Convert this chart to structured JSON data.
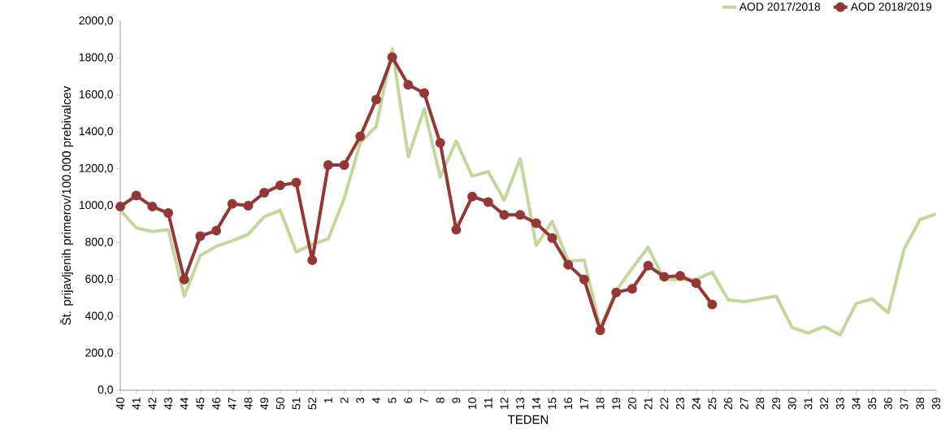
{
  "chart_data": {
    "type": "line",
    "xlabel": "TEDEN",
    "ylabel": "Št. prijavljenih primerov/100.000 prebivalcev",
    "categories": [
      "40",
      "41",
      "42",
      "43",
      "44",
      "45",
      "46",
      "47",
      "48",
      "49",
      "50",
      "51",
      "52",
      "1",
      "2",
      "3",
      "4",
      "5",
      "6",
      "7",
      "8",
      "9",
      "10",
      "11",
      "12",
      "13",
      "14",
      "15",
      "16",
      "17",
      "18",
      "19",
      "20",
      "21",
      "22",
      "23",
      "24",
      "25",
      "26",
      "27",
      "28",
      "29",
      "30",
      "31",
      "32",
      "33",
      "34",
      "35",
      "36",
      "37",
      "38",
      "39"
    ],
    "series": [
      {
        "name": "AOD 2017/2018",
        "color": "#c3d69b",
        "marker": "none",
        "values": [
          975,
          880,
          860,
          870,
          510,
          730,
          780,
          810,
          845,
          940,
          975,
          750,
          790,
          820,
          1040,
          1340,
          1430,
          1850,
          1265,
          1525,
          1155,
          1350,
          1160,
          1185,
          1030,
          1255,
          785,
          915,
          700,
          705,
          340,
          540,
          660,
          775,
          600,
          600,
          600,
          640,
          490,
          480,
          495,
          510,
          340,
          310,
          345,
          300,
          470,
          495,
          420,
          765,
          925,
          955
        ]
      },
      {
        "name": "AOD 2018/2019",
        "color": "#953735",
        "marker": "circle",
        "values": [
          995,
          1055,
          995,
          960,
          600,
          835,
          865,
          1010,
          1000,
          1070,
          1110,
          1125,
          705,
          1220,
          1220,
          1375,
          1575,
          1805,
          1655,
          1610,
          1340,
          870,
          1050,
          1020,
          950,
          950,
          905,
          825,
          680,
          600,
          325,
          530,
          550,
          675,
          615,
          620,
          580,
          465,
          null,
          null,
          null,
          null,
          null,
          null,
          null,
          null,
          null,
          null,
          null,
          null,
          null,
          null
        ]
      }
    ],
    "ylim": [
      0,
      2000
    ],
    "yticks": [
      {
        "value": 0,
        "label": "0,0"
      },
      {
        "value": 200,
        "label": "200,0"
      },
      {
        "value": 400,
        "label": "400,0"
      },
      {
        "value": 600,
        "label": "600,0"
      },
      {
        "value": 800,
        "label": "800,0"
      },
      {
        "value": 1000,
        "label": "1000,0"
      },
      {
        "value": 1200,
        "label": "1200,0"
      },
      {
        "value": 1400,
        "label": "1400,0"
      },
      {
        "value": 1600,
        "label": "1600,0"
      },
      {
        "value": 1800,
        "label": "1800,0"
      },
      {
        "value": 2000,
        "label": "2000,0"
      }
    ],
    "legend": "top right",
    "grid": false
  }
}
